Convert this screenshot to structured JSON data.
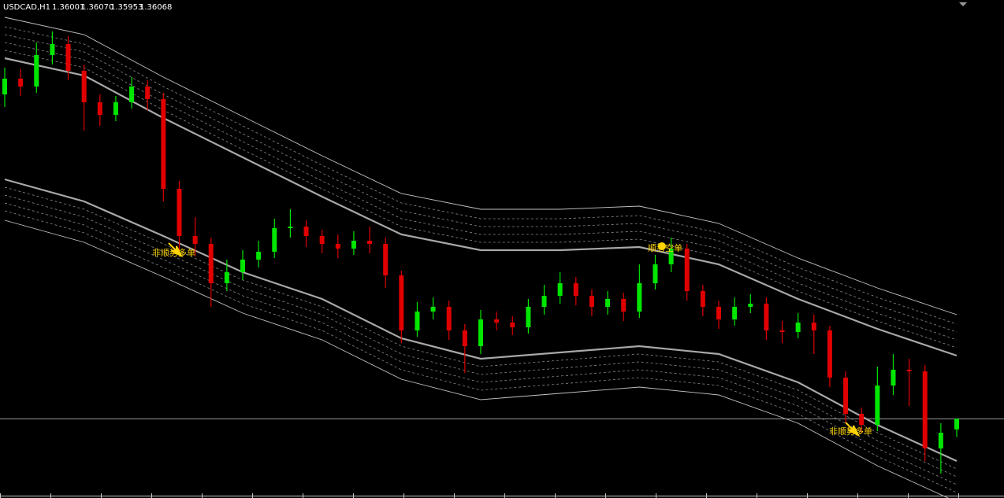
{
  "chart_data": {
    "type": "candlestick",
    "title": "USDCAD,H1",
    "open": [
      1.3813,
      1.3823,
      1.3818,
      1.3838,
      1.3845,
      1.3828,
      1.3808,
      1.38,
      1.3808,
      1.3818,
      1.381,
      1.3753,
      1.3723,
      1.3718,
      1.3693,
      1.37,
      1.3708,
      1.3713,
      1.3728,
      1.3729,
      1.3723,
      1.3718,
      1.3715,
      1.372,
      1.3718,
      1.3698,
      1.3663,
      1.3675,
      1.3678,
      1.3663,
      1.3653,
      1.367,
      1.3668,
      1.3665,
      1.3678,
      1.3685,
      1.3693,
      1.3685,
      1.3678,
      1.3683,
      1.3675,
      1.3693,
      1.3705,
      1.3715,
      1.3688,
      1.3678,
      1.367,
      1.3678,
      1.368,
      1.3663,
      1.3662,
      1.3668,
      1.3663,
      1.3633,
      1.361,
      1.3603,
      1.3628,
      1.3638,
      1.3637,
      1.3588,
      1.36001
    ],
    "high": [
      1.383,
      1.3829,
      1.3846,
      1.3853,
      1.385,
      1.3832,
      1.3813,
      1.3812,
      1.3824,
      1.3822,
      1.3814,
      1.3758,
      1.3735,
      1.3722,
      1.3708,
      1.3714,
      1.372,
      1.3734,
      1.374,
      1.3733,
      1.3727,
      1.3724,
      1.3726,
      1.3729,
      1.3722,
      1.3701,
      1.3681,
      1.3684,
      1.3682,
      1.3667,
      1.3676,
      1.3675,
      1.3672,
      1.3683,
      1.3692,
      1.37,
      1.3697,
      1.3689,
      1.3688,
      1.3687,
      1.3705,
      1.3711,
      1.3722,
      1.3718,
      1.3692,
      1.3682,
      1.3684,
      1.3686,
      1.3684,
      1.3669,
      1.3674,
      1.3673,
      1.3666,
      1.3637,
      1.3614,
      1.364,
      1.3648,
      1.3645,
      1.3641,
      1.3604,
      1.3607
    ],
    "low": [
      1.3805,
      1.3812,
      1.3814,
      1.3832,
      1.3822,
      1.379,
      1.3793,
      1.3796,
      1.3804,
      1.3803,
      1.3745,
      1.3712,
      1.371,
      1.3678,
      1.3688,
      1.3695,
      1.3703,
      1.3709,
      1.3722,
      1.3716,
      1.3712,
      1.3709,
      1.3711,
      1.3712,
      1.369,
      1.3655,
      1.3659,
      1.367,
      1.3657,
      1.3636,
      1.3648,
      1.3663,
      1.366,
      1.3661,
      1.3673,
      1.368,
      1.3679,
      1.3672,
      1.3673,
      1.3669,
      1.3671,
      1.3689,
      1.37,
      1.3682,
      1.3672,
      1.3664,
      1.3666,
      1.3674,
      1.3657,
      1.3655,
      1.3658,
      1.3648,
      1.3627,
      1.3604,
      1.3598,
      1.3599,
      1.3622,
      1.3615,
      1.358,
      1.3572,
      1.35953
    ],
    "close": [
      1.3823,
      1.3818,
      1.3838,
      1.3845,
      1.3828,
      1.3808,
      1.38,
      1.3808,
      1.3818,
      1.381,
      1.3753,
      1.3723,
      1.3718,
      1.3693,
      1.37,
      1.3708,
      1.3713,
      1.3728,
      1.3729,
      1.3723,
      1.3718,
      1.3715,
      1.372,
      1.3718,
      1.3698,
      1.3663,
      1.3675,
      1.3678,
      1.3663,
      1.3653,
      1.367,
      1.3668,
      1.3665,
      1.3678,
      1.3685,
      1.3693,
      1.3685,
      1.3678,
      1.3683,
      1.3675,
      1.3693,
      1.3705,
      1.3715,
      1.3688,
      1.3678,
      1.367,
      1.3678,
      1.368,
      1.3663,
      1.3662,
      1.3668,
      1.3663,
      1.3633,
      1.361,
      1.3603,
      1.3628,
      1.3638,
      1.3637,
      1.3588,
      1.3598,
      1.36068
    ],
    "last_value_labels": [
      "1.36001",
      "1.36070",
      "1.35953",
      "1.36068"
    ],
    "up_color": "#00e600",
    "down_color": "#e00000",
    "ylim": [
      1.35565,
      1.3873
    ],
    "bands": {
      "x": [
        0,
        5,
        10,
        15,
        20,
        25,
        30,
        35,
        40,
        45,
        50,
        55,
        60
      ],
      "upper": [
        1.3836,
        1.3825,
        1.3798,
        1.3773,
        1.3748,
        1.3724,
        1.3714,
        1.3714,
        1.3716,
        1.3705,
        1.3683,
        1.3664,
        1.3647
      ],
      "lower": [
        1.3759,
        1.3745,
        1.3723,
        1.37,
        1.3683,
        1.3658,
        1.3645,
        1.3649,
        1.3653,
        1.3648,
        1.363,
        1.3603,
        1.358
      ],
      "color": "#a8a8a8"
    },
    "annotations": [
      "非顺势多单",
      "顺势空单",
      "非顺势多单"
    ],
    "annotation_color": "#ffd400"
  }
}
